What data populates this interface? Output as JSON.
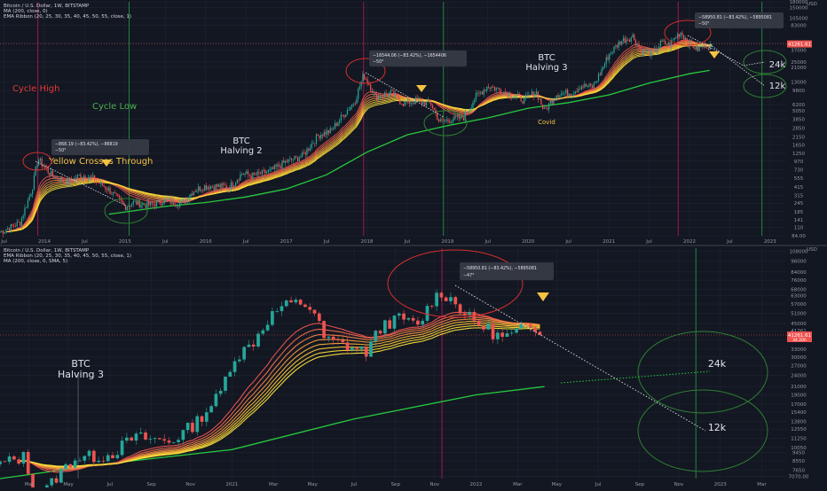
{
  "colors": {
    "background": "#131722",
    "grid": "#1f2433",
    "axis_text": "#9598a1",
    "candle_up": "#26a69a",
    "candle_down": "#ef5350",
    "ma200": "#27c93f",
    "ribbon": [
      "#ef5350",
      "#f16a4a",
      "#f38244",
      "#f5993e",
      "#f6b03a",
      "#f8c537",
      "#f9d538",
      "#fbe33c"
    ],
    "cycle_high_line": "#c2185b",
    "cycle_low_line": "#2e9e4a",
    "annotation_yellow": "#f5c242",
    "annotation_red": "#e53935",
    "annotation_green": "#4caf50",
    "circle_red": "#d32f2f",
    "circle_green": "#2e7d32",
    "price_label": "#ef5350"
  },
  "chart_data": [
    {
      "type": "candlestick",
      "legend": [
        "Bitcoin / U.S. Dollar, 1W, BITSTAMP",
        "MA (200, close, 0)",
        "EMA Ribbon (20, 25, 30, 35, 40, 45, 50, 55, close, 1)"
      ],
      "currency_label": "USD",
      "price_tag": "41261.61",
      "y_scale": "log",
      "ylim": [
        84,
        180000
      ],
      "y_ticks": [
        "180000",
        "150000",
        "105000",
        "83000",
        "47000",
        "37000",
        "25000",
        "21000",
        "13000",
        "9800",
        "6200",
        "5050",
        "3850",
        "2850",
        "2150",
        "1650",
        "1250",
        "970",
        "730",
        "555",
        "415",
        "315",
        "245",
        "185",
        "141",
        "110",
        "84.00"
      ],
      "x_ticks": [
        "Jul",
        "2014",
        "Jul",
        "2015",
        "Jul",
        "2016",
        "Jul",
        "2017",
        "Jul",
        "2018",
        "Jul",
        "2019",
        "Jul",
        "2020",
        "Jul",
        "2021",
        "Jul",
        "2022",
        "Jul",
        "2023"
      ],
      "x_tick_years": [
        2013.5,
        2014,
        2014.5,
        2015,
        2015.5,
        2016,
        2016.5,
        2017,
        2017.5,
        2018,
        2018.5,
        2019,
        2019.5,
        2020,
        2020.5,
        2021,
        2021.5,
        2022,
        2022.5,
        2023
      ],
      "xlim": [
        2013.45,
        2023.2
      ],
      "price_path": [
        [
          2013.45,
          95
        ],
        [
          2013.7,
          130
        ],
        [
          2013.85,
          400
        ],
        [
          2013.92,
          1050
        ],
        [
          2014.0,
          800
        ],
        [
          2014.1,
          600
        ],
        [
          2014.3,
          480
        ],
        [
          2014.45,
          620
        ],
        [
          2014.6,
          550
        ],
        [
          2014.8,
          380
        ],
        [
          2015.0,
          220
        ],
        [
          2015.1,
          250
        ],
        [
          2015.3,
          230
        ],
        [
          2015.5,
          270
        ],
        [
          2015.7,
          240
        ],
        [
          2015.85,
          370
        ],
        [
          2016.0,
          430
        ],
        [
          2016.3,
          420
        ],
        [
          2016.45,
          650
        ],
        [
          2016.6,
          600
        ],
        [
          2016.8,
          700
        ],
        [
          2017.0,
          950
        ],
        [
          2017.2,
          1150
        ],
        [
          2017.4,
          2300
        ],
        [
          2017.55,
          2600
        ],
        [
          2017.7,
          4300
        ],
        [
          2017.85,
          7000
        ],
        [
          2017.96,
          16500
        ],
        [
          2018.05,
          11000
        ],
        [
          2018.1,
          8000
        ],
        [
          2018.3,
          9000
        ],
        [
          2018.45,
          6500
        ],
        [
          2018.6,
          7000
        ],
        [
          2018.8,
          6300
        ],
        [
          2018.9,
          3500
        ],
        [
          2019.0,
          3700
        ],
        [
          2019.2,
          4100
        ],
        [
          2019.35,
          8000
        ],
        [
          2019.5,
          11500
        ],
        [
          2019.65,
          10000
        ],
        [
          2019.8,
          8500
        ],
        [
          2019.95,
          7200
        ],
        [
          2020.1,
          9500
        ],
        [
          2020.2,
          5000
        ],
        [
          2020.35,
          8800
        ],
        [
          2020.55,
          9300
        ],
        [
          2020.65,
          11500
        ],
        [
          2020.8,
          11000
        ],
        [
          2020.9,
          18000
        ],
        [
          2021.0,
          32000
        ],
        [
          2021.15,
          50000
        ],
        [
          2021.3,
          58000
        ],
        [
          2021.4,
          36000
        ],
        [
          2021.55,
          33000
        ],
        [
          2021.65,
          47000
        ],
        [
          2021.75,
          44000
        ],
        [
          2021.85,
          60000
        ],
        [
          2021.89,
          67000
        ],
        [
          2022.0,
          46000
        ],
        [
          2022.1,
          38000
        ],
        [
          2022.2,
          44000
        ],
        [
          2022.28,
          41261
        ]
      ],
      "ma200_path": [
        [
          2014.8,
          170
        ],
        [
          2015.5,
          220
        ],
        [
          2016.0,
          250
        ],
        [
          2016.5,
          300
        ],
        [
          2017.0,
          390
        ],
        [
          2017.5,
          620
        ],
        [
          2018.0,
          1300
        ],
        [
          2018.5,
          2300
        ],
        [
          2019.0,
          3100
        ],
        [
          2019.5,
          4000
        ],
        [
          2020.0,
          5500
        ],
        [
          2020.5,
          6600
        ],
        [
          2021.0,
          8500
        ],
        [
          2021.5,
          12500
        ],
        [
          2022.0,
          17000
        ],
        [
          2022.25,
          19000
        ]
      ],
      "cycle_high_years": [
        2013.92,
        2017.96,
        2021.86
      ],
      "cycle_low_years": [
        2015.05,
        2018.95,
        2022.9
      ],
      "annotations": {
        "cycle_high": "Cycle High",
        "cycle_low": "Cycle Low",
        "halving2": [
          "BTC",
          "Halving 2"
        ],
        "halving3": [
          "BTC",
          "Halving 3"
        ],
        "covid": "Covid",
        "yellow": "Yellow Crosses Through",
        "k24": "24k",
        "k12": "12k"
      },
      "measures": [
        {
          "line1": "−868.19 (−83.42%), −86819",
          "line2": "−50°"
        },
        {
          "line1": "−16544.06 (−83.42%), −1654406",
          "line2": "−50°"
        },
        {
          "line1": "−58950.81 (−83.42%), −5895081",
          "line2": "−50°"
        }
      ]
    },
    {
      "type": "candlestick",
      "legend": [
        "Bitcoin / U.S. Dollar, 1W, BITSTAMP",
        "EMA Ribbon (20, 25, 30, 35, 40, 45, 50, 55, close, 1)",
        "MA (200, close, 0, SMA, 5)"
      ],
      "currency_label": "USD",
      "price_tag": "41261.61",
      "price_tag_sub": "34 20h",
      "y_scale": "log",
      "ylim": [
        6900,
        112000
      ],
      "y_ticks": [
        "108000",
        "96000",
        "84000",
        "76000",
        "68000",
        "63000",
        "57000",
        "51000",
        "45000",
        "41261",
        "37000",
        "33000",
        "30000",
        "27000",
        "24000",
        "21000",
        "19000",
        "17000",
        "15400",
        "13800",
        "12550",
        "11250",
        "10050",
        "9450",
        "8550",
        "7650",
        "7070.00"
      ],
      "x_ticks": [
        "Mar",
        "May",
        "Jul",
        "Sep",
        "Nov",
        "2021",
        "Mar",
        "May",
        "Jul",
        "Sep",
        "Nov",
        "2022",
        "Mar",
        "May",
        "Jul",
        "Sep",
        "Nov",
        "2023",
        "Mar"
      ],
      "x_tick_years": [
        2020.17,
        2020.33,
        2020.5,
        2020.67,
        2020.83,
        2021,
        2021.17,
        2021.33,
        2021.5,
        2021.67,
        2021.83,
        2022,
        2022.17,
        2022.33,
        2022.5,
        2022.67,
        2022.83,
        2023,
        2023.17
      ],
      "xlim": [
        2020.05,
        2023.27
      ],
      "price_path": [
        [
          2020.05,
          8200
        ],
        [
          2020.15,
          9000
        ],
        [
          2020.2,
          5200
        ],
        [
          2020.28,
          7000
        ],
        [
          2020.35,
          8800
        ],
        [
          2020.5,
          9200
        ],
        [
          2020.6,
          11400
        ],
        [
          2020.75,
          10800
        ],
        [
          2020.85,
          13500
        ],
        [
          2020.95,
          19000
        ],
        [
          2021.0,
          29000
        ],
        [
          2021.08,
          35000
        ],
        [
          2021.15,
          48000
        ],
        [
          2021.2,
          55000
        ],
        [
          2021.28,
          58000
        ],
        [
          2021.33,
          54000
        ],
        [
          2021.38,
          37000
        ],
        [
          2021.45,
          35000
        ],
        [
          2021.55,
          32000
        ],
        [
          2021.62,
          45000
        ],
        [
          2021.7,
          48000
        ],
        [
          2021.76,
          43000
        ],
        [
          2021.82,
          60000
        ],
        [
          2021.86,
          66000
        ],
        [
          2021.92,
          57000
        ],
        [
          2021.98,
          47000
        ],
        [
          2022.05,
          42000
        ],
        [
          2022.1,
          38000
        ],
        [
          2022.15,
          39000
        ],
        [
          2022.22,
          45000
        ],
        [
          2022.28,
          41261
        ]
      ],
      "ma200_path": [
        [
          2020.05,
          6900
        ],
        [
          2020.5,
          8300
        ],
        [
          2021.0,
          9800
        ],
        [
          2021.5,
          14200
        ],
        [
          2022.0,
          19000
        ],
        [
          2022.28,
          21000
        ]
      ],
      "halving_year": 2020.37,
      "cycle_high_year": 2021.86,
      "cycle_low_year": 2022.9,
      "annotations": {
        "halving3": [
          "BTC",
          "Halving 3"
        ],
        "k24": "24k",
        "k12": "12k"
      },
      "measure": {
        "line1": "−58950.81 (−83.42%), −5895081",
        "line2": "−47°"
      }
    }
  ]
}
